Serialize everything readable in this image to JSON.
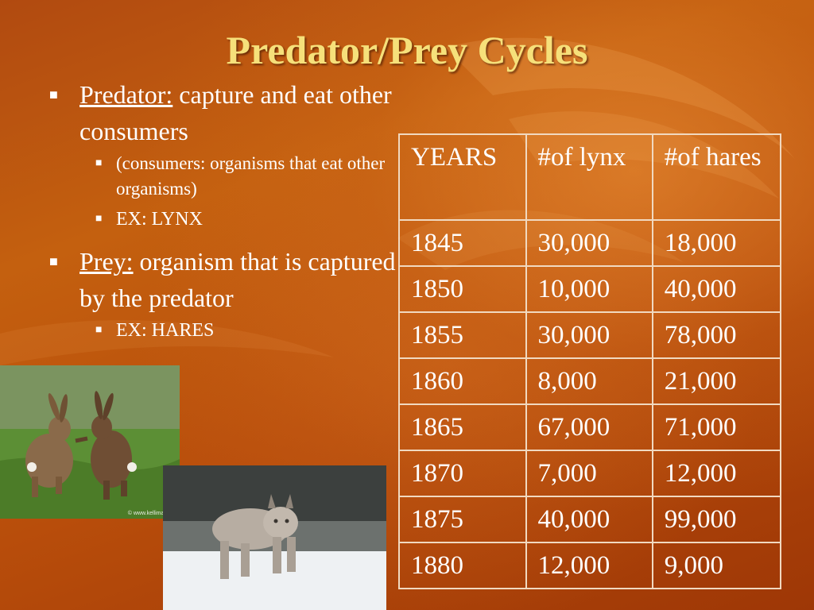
{
  "slide": {
    "title": "Predator/Prey Cycles",
    "bullets": [
      {
        "term": "Predator:",
        "text": " capture and eat other consumers",
        "sub": [
          "(consumers: organisms that eat other organisms)",
          "EX: LYNX"
        ]
      },
      {
        "term": "Prey:",
        "text": " organism that is captured by the predator",
        "sub": [
          "EX: HARES"
        ]
      }
    ]
  },
  "table": {
    "headers": [
      "YEARS",
      "#of lynx",
      "#of hares"
    ],
    "rows": [
      [
        "1845",
        "30,000",
        "18,000"
      ],
      [
        "1850",
        "10,000",
        "40,000"
      ],
      [
        "1855",
        "30,000",
        "78,000"
      ],
      [
        "1860",
        "8,000",
        "21,000"
      ],
      [
        "1865",
        "67,000",
        "71,000"
      ],
      [
        "1870",
        "7,000",
        "12,000"
      ],
      [
        "1875",
        "40,000",
        "99,000"
      ],
      [
        "1880",
        "12,000",
        "9,000"
      ]
    ]
  },
  "images": {
    "hares_caption": "© www.kellimage..."
  },
  "colors": {
    "background": "#b84d0b",
    "title": "#f6e07a",
    "text": "#ffffff",
    "table_border": "#f1d9c0"
  }
}
